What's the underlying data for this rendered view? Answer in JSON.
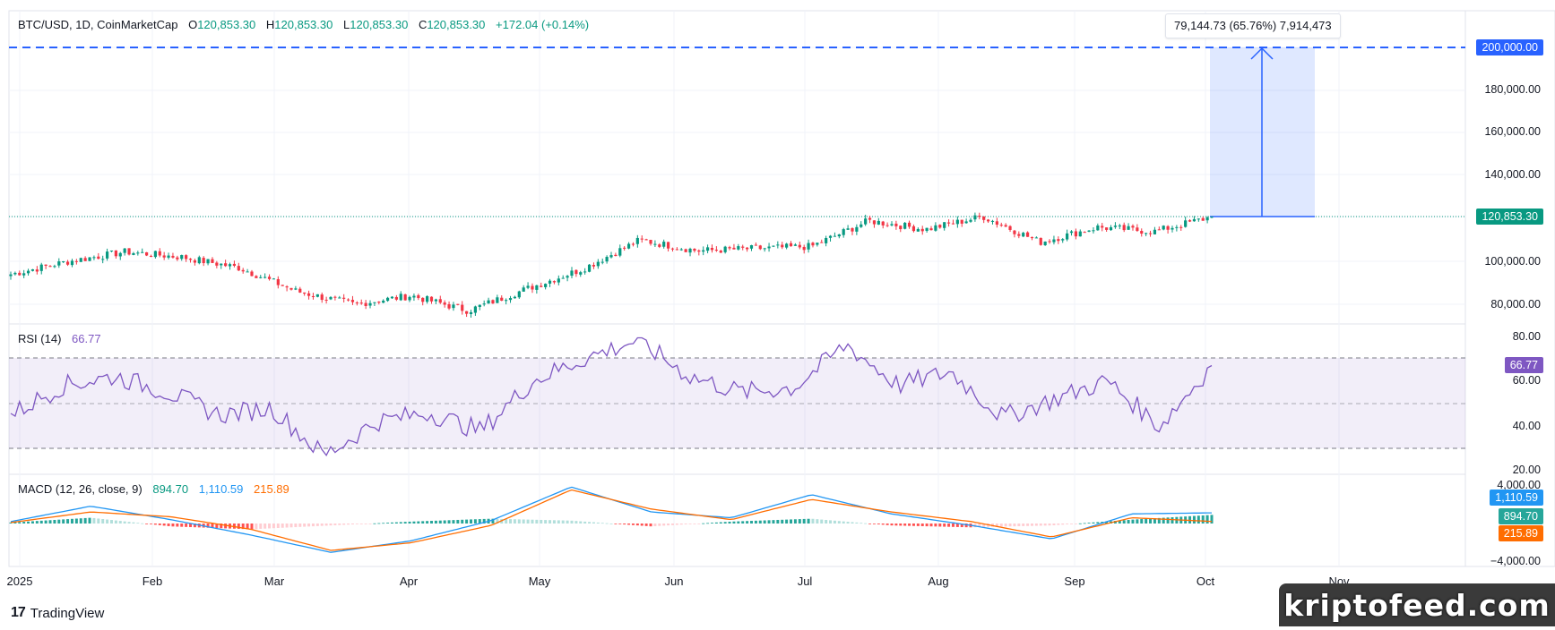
{
  "symbol_header": {
    "title": "BTC/USD, 1D, CoinMarketCap",
    "open_label": "O",
    "open_value": "120,853.30",
    "high_label": "H",
    "high_value": "120,853.30",
    "low_label": "L",
    "low_value": "120,853.30",
    "close_label": "C",
    "close_value": "120,853.30",
    "change": "+172.04 (+0.14%)"
  },
  "measure_tool": {
    "label": "79,144.73 (65.76%) 7,914,473"
  },
  "price_tags": {
    "target": "200,000.00",
    "current": "120,853.30"
  },
  "price_axis": [
    "200,000.00",
    "180,000.00",
    "160,000.00",
    "140,000.00",
    "100,000.00",
    "80,000.00"
  ],
  "rsi": {
    "label": "RSI (14)",
    "value": "66.77",
    "axis": [
      "80.00",
      "60.00",
      "40.00",
      "20.00"
    ],
    "tag": "66.77"
  },
  "macd": {
    "label": "MACD (12, 26, close, 9)",
    "histogram_value": "894.70",
    "macd_value": "1,110.59",
    "signal_value": "215.89",
    "axis": [
      "4,000.00",
      "−4,000.00"
    ],
    "tags": {
      "macd": "1,110.59",
      "hist": "894.70",
      "signal": "215.89"
    }
  },
  "time_axis": [
    "2025",
    "Feb",
    "Mar",
    "Apr",
    "May",
    "Jun",
    "Jul",
    "Aug",
    "Sep",
    "Oct",
    "Nov"
  ],
  "footer": {
    "brand": "TradingView",
    "watermark": "kriptofeed.com"
  },
  "colors": {
    "up": "#089981",
    "down": "#f23645",
    "rsi_line": "#7e57c2",
    "macd_line": "#2196f3",
    "signal_line": "#ff6d00",
    "accent_blue": "#2962ff"
  },
  "chart_data": [
    {
      "type": "candlestick",
      "title": "BTC/USD, 1D, CoinMarketCap",
      "ylim": [
        70000,
        205000
      ],
      "x": [
        "2025-01",
        "Feb",
        "Mar",
        "Apr",
        "May",
        "Jun",
        "Jul",
        "Aug",
        "Sep",
        "Oct"
      ],
      "series": [
        {
          "x": [
            "Jan 1",
            "Jan 15",
            "Jan 22",
            "Feb 1",
            "Feb 15",
            "Mar 1",
            "Mar 10",
            "Apr 1",
            "Apr 8",
            "Apr 20",
            "May 1",
            "May 22",
            "Jun 1",
            "Jun 15",
            "Jul 1",
            "Jul 14",
            "Aug 1",
            "Aug 14",
            "Sep 1",
            "Sep 15",
            "Oct 1",
            "Oct 3"
          ],
          "values": [
            94000,
            100000,
            104500,
            102000,
            97000,
            86000,
            80000,
            84000,
            77000,
            87000,
            96500,
            110000,
            105000,
            106000,
            107000,
            119000,
            115000,
            121000,
            109000,
            116000,
            114000,
            120853.3
          ]
        }
      ],
      "annotations": {
        "target_level": 200000,
        "current_level": 120853.3,
        "measure": "79,144.73 (65.76%) 7,914,473"
      }
    },
    {
      "type": "line",
      "title": "RSI (14)",
      "ylim": [
        20,
        80
      ],
      "bands": [
        30,
        50,
        70
      ],
      "series": [
        {
          "name": "RSI (14)",
          "x": [
            "Jan 1",
            "Jan 10",
            "Jan 20",
            "Feb 1",
            "Feb 10",
            "Feb 25",
            "Mar 3",
            "Mar 10",
            "Apr 1",
            "Apr 9",
            "Apr 22",
            "May 5",
            "May 20",
            "Jun 1",
            "Jun 15",
            "Jul 1",
            "Jul 14",
            "Aug 1",
            "Aug 13",
            "Aug 25",
            "Sep 10",
            "Sep 20",
            "Sep 28",
            "Oct 3"
          ],
          "values": [
            45,
            58,
            62,
            55,
            45,
            48,
            27,
            42,
            46,
            38,
            60,
            70,
            78,
            62,
            55,
            57,
            76,
            58,
            64,
            44,
            52,
            60,
            40,
            66.77
          ]
        }
      ]
    },
    {
      "type": "line",
      "title": "MACD (12, 26, close, 9)",
      "ylim": [
        -4000,
        4000
      ],
      "series": [
        {
          "name": "MACD",
          "x": [
            "Jan 1",
            "Jan 20",
            "Feb 10",
            "Mar 1",
            "Mar 15",
            "Apr 5",
            "Apr 25",
            "May 20",
            "Jun 10",
            "Jul 1",
            "Jul 14",
            "Aug 1",
            "Aug 15",
            "Sep 1",
            "Sep 20",
            "Oct 3"
          ],
          "values": [
            200,
            1800,
            400,
            -1200,
            -3000,
            -1800,
            300,
            3800,
            1200,
            600,
            3000,
            1000,
            -200,
            -1600,
            1000,
            1110.59
          ]
        },
        {
          "name": "Signal",
          "x": [
            "Jan 1",
            "Jan 20",
            "Feb 10",
            "Mar 1",
            "Mar 15",
            "Apr 5",
            "Apr 25",
            "May 20",
            "Jun 10",
            "Jul 1",
            "Jul 14",
            "Aug 1",
            "Aug 15",
            "Sep 1",
            "Sep 20",
            "Oct 3"
          ],
          "values": [
            100,
            1200,
            700,
            -600,
            -2800,
            -2000,
            -200,
            3500,
            1500,
            400,
            2500,
            1200,
            200,
            -1400,
            600,
            215.89
          ]
        }
      ]
    }
  ]
}
